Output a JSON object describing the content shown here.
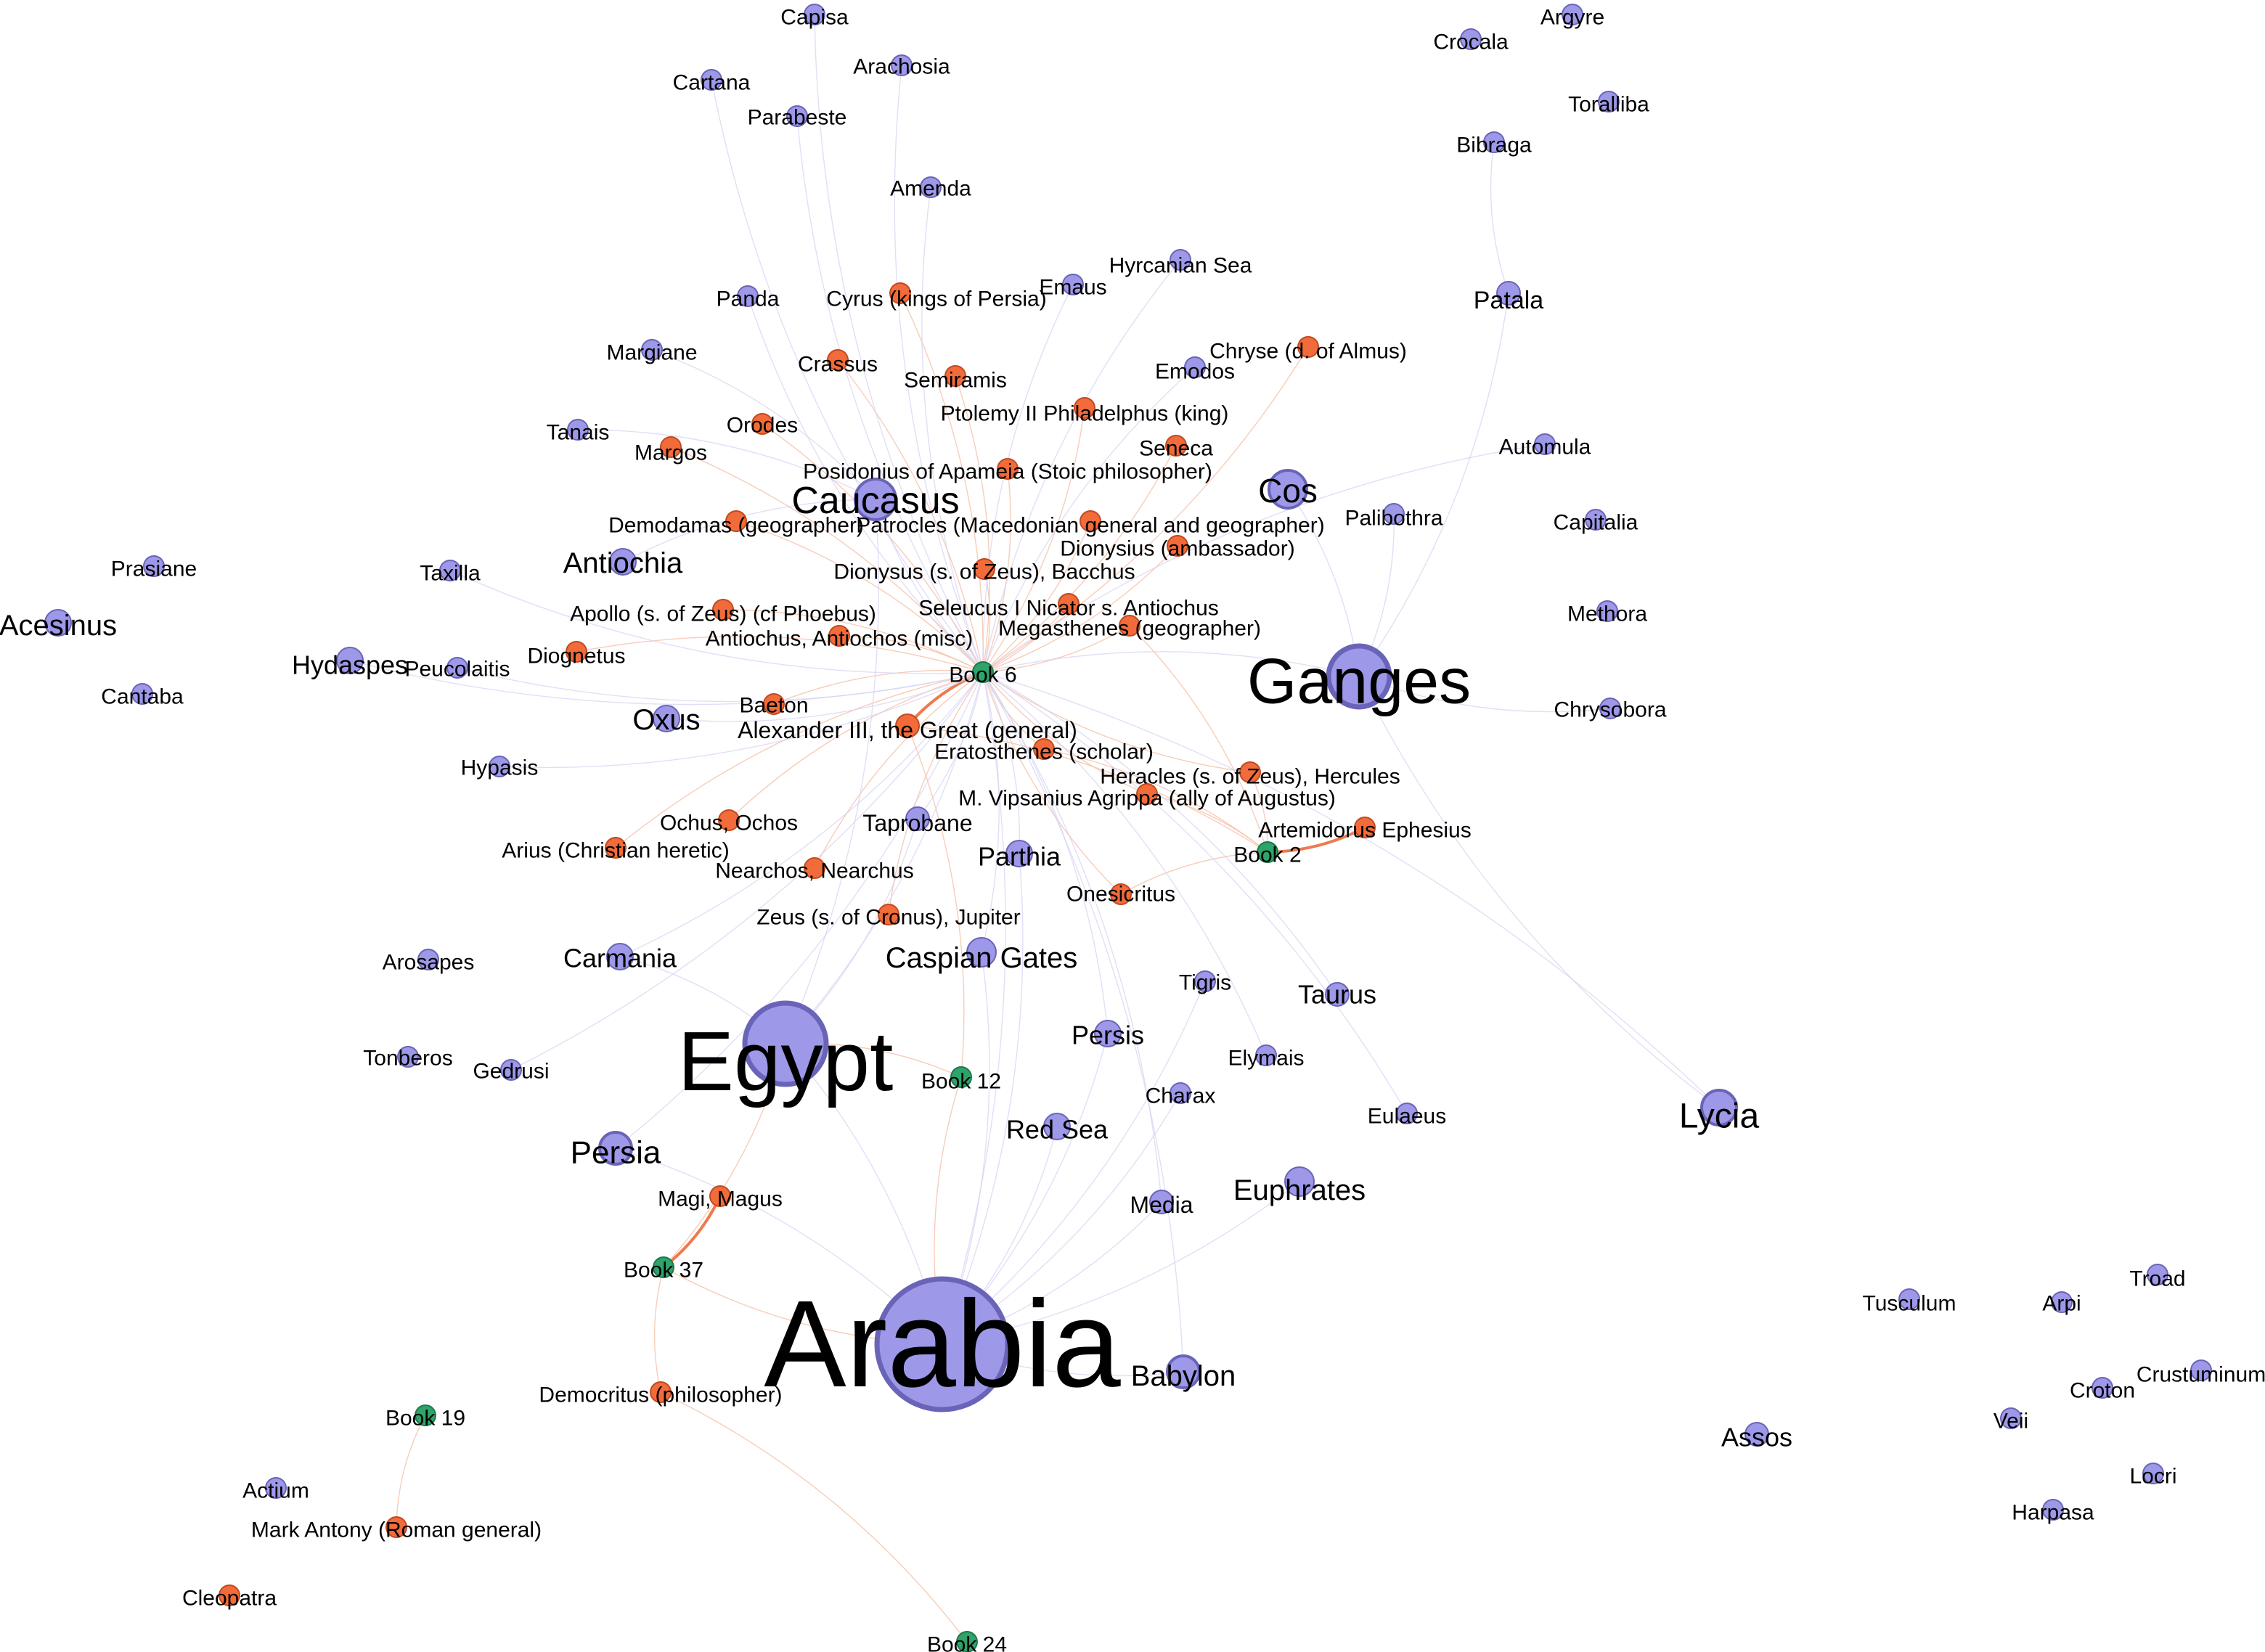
{
  "colors": {
    "place": "#9d98e8",
    "place_stroke": "#6a64b8",
    "person": "#f26b3a",
    "person_stroke": "#c24a1f",
    "book": "#2ea36a",
    "book_stroke": "#1c7a4a",
    "edge_light": "#f6c0a8",
    "edge_strong": "#ee7a4e",
    "edge_blue": "#d4d2f2",
    "background": "#ffffff"
  },
  "legend_categories": [
    "place",
    "person",
    "book"
  ],
  "nodes": [
    {
      "id": "capisa",
      "label": "Capisa",
      "type": "place"
    },
    {
      "id": "arachosia",
      "label": "Arachosia",
      "type": "place"
    },
    {
      "id": "cartana",
      "label": "Cartana",
      "type": "place"
    },
    {
      "id": "parabeste",
      "label": "Parabeste",
      "type": "place"
    },
    {
      "id": "amenda",
      "label": "Amenda",
      "type": "place"
    },
    {
      "id": "crocala",
      "label": "Crocala",
      "type": "place"
    },
    {
      "id": "argyre",
      "label": "Argyre",
      "type": "place"
    },
    {
      "id": "toralliba",
      "label": "Toralliba",
      "type": "place"
    },
    {
      "id": "bibraga",
      "label": "Bibraga",
      "type": "place"
    },
    {
      "id": "hyrcanian_sea",
      "label": "Hyrcanian Sea",
      "type": "place"
    },
    {
      "id": "emaus",
      "label": "Emaus",
      "type": "place"
    },
    {
      "id": "panda",
      "label": "Panda",
      "type": "place"
    },
    {
      "id": "cyrus",
      "label": "Cyrus (kings of Persia)",
      "type": "person"
    },
    {
      "id": "patala",
      "label": "Patala",
      "type": "place"
    },
    {
      "id": "margiane",
      "label": "Margiane",
      "type": "place"
    },
    {
      "id": "crassus",
      "label": "Crassus",
      "type": "person"
    },
    {
      "id": "semiramis",
      "label": "Semiramis",
      "type": "person"
    },
    {
      "id": "chryse",
      "label": "Chryse (d. of Almus)",
      "type": "person"
    },
    {
      "id": "emodos",
      "label": "Emodos",
      "type": "place"
    },
    {
      "id": "ptolemy2",
      "label": "Ptolemy II Philadelphus (king)",
      "type": "person"
    },
    {
      "id": "tanais",
      "label": "Tanais",
      "type": "place"
    },
    {
      "id": "orodes",
      "label": "Orodes",
      "type": "person"
    },
    {
      "id": "margos",
      "label": "Margos",
      "type": "person"
    },
    {
      "id": "seneca",
      "label": "Seneca",
      "type": "person"
    },
    {
      "id": "automula",
      "label": "Automula",
      "type": "place"
    },
    {
      "id": "posidonius",
      "label": "Posidonius of Apameia (Stoic philosopher)",
      "type": "person"
    },
    {
      "id": "cos",
      "label": "Cos",
      "type": "place"
    },
    {
      "id": "caucasus",
      "label": "Caucasus",
      "type": "place"
    },
    {
      "id": "capitalia",
      "label": "Capitalia",
      "type": "place"
    },
    {
      "id": "palibothra",
      "label": "Palibothra",
      "type": "place"
    },
    {
      "id": "demodamas",
      "label": "Demodamas (geographer)",
      "type": "person"
    },
    {
      "id": "patrocles",
      "label": "Patrocles (Macedonian general and geographer)",
      "type": "person"
    },
    {
      "id": "dionysius_amb",
      "label": "Dionysius (ambassador)",
      "type": "person"
    },
    {
      "id": "prasiane",
      "label": "Prasiane",
      "type": "place"
    },
    {
      "id": "antiochia",
      "label": "Antiochia",
      "type": "place"
    },
    {
      "id": "taxilla",
      "label": "Taxilla",
      "type": "place"
    },
    {
      "id": "dionysus",
      "label": "Dionysus (s. of Zeus), Bacchus",
      "type": "person"
    },
    {
      "id": "acesinus",
      "label": "Acesinus",
      "type": "place"
    },
    {
      "id": "apollo",
      "label": "Apollo (s. of Zeus) (cf Phoebus)",
      "type": "person"
    },
    {
      "id": "seleucus",
      "label": "Seleucus I Nicator s. Antiochus",
      "type": "person"
    },
    {
      "id": "methora",
      "label": "Methora",
      "type": "place"
    },
    {
      "id": "antiochus",
      "label": "Antiochus, Antiochos (misc)",
      "type": "person"
    },
    {
      "id": "megasthenes",
      "label": "Megasthenes (geographer)",
      "type": "person"
    },
    {
      "id": "diognetus",
      "label": "Diognetus",
      "type": "person"
    },
    {
      "id": "hydaspes",
      "label": "Hydaspes",
      "type": "place"
    },
    {
      "id": "peucolaitis",
      "label": "Peucolaitis",
      "type": "place"
    },
    {
      "id": "book6",
      "label": "Book 6",
      "type": "book"
    },
    {
      "id": "ganges",
      "label": "Ganges",
      "type": "place"
    },
    {
      "id": "cantaba",
      "label": "Cantaba",
      "type": "place"
    },
    {
      "id": "baeton",
      "label": "Baeton",
      "type": "person"
    },
    {
      "id": "chrysobora",
      "label": "Chrysobora",
      "type": "place"
    },
    {
      "id": "oxus",
      "label": "Oxus",
      "type": "place"
    },
    {
      "id": "alexander",
      "label": "Alexander III, the Great (general)",
      "type": "person"
    },
    {
      "id": "eratosthenes",
      "label": "Eratosthenes (scholar)",
      "type": "person"
    },
    {
      "id": "hypasis",
      "label": "Hypasis",
      "type": "place"
    },
    {
      "id": "heracles",
      "label": "Heracles (s. of Zeus), Hercules",
      "type": "person"
    },
    {
      "id": "agrippa",
      "label": "M. Vipsanius Agrippa (ally of Augustus)",
      "type": "person"
    },
    {
      "id": "ochus",
      "label": "Ochus, Ochos",
      "type": "person"
    },
    {
      "id": "taprobane",
      "label": "Taprobane",
      "type": "place"
    },
    {
      "id": "artemidorus",
      "label": "Artemidorus Ephesius",
      "type": "person"
    },
    {
      "id": "arius",
      "label": "Arius (Christian heretic)",
      "type": "person"
    },
    {
      "id": "book2",
      "label": "Book 2",
      "type": "book"
    },
    {
      "id": "parthia",
      "label": "Parthia",
      "type": "place"
    },
    {
      "id": "nearchos",
      "label": "Nearchos, Nearchus",
      "type": "person"
    },
    {
      "id": "onesicritus",
      "label": "Onesicritus",
      "type": "person"
    },
    {
      "id": "zeus",
      "label": "Zeus (s. of Cronus), Jupiter",
      "type": "person"
    },
    {
      "id": "arosapes",
      "label": "Arosapes",
      "type": "place"
    },
    {
      "id": "carmania",
      "label": "Carmania",
      "type": "place"
    },
    {
      "id": "caspian_gates",
      "label": "Caspian Gates",
      "type": "place"
    },
    {
      "id": "tigris",
      "label": "Tigris",
      "type": "place"
    },
    {
      "id": "taurus",
      "label": "Taurus",
      "type": "place"
    },
    {
      "id": "tonberos",
      "label": "Tonberos",
      "type": "place"
    },
    {
      "id": "persis",
      "label": "Persis",
      "type": "place"
    },
    {
      "id": "elymais",
      "label": "Elymais",
      "type": "place"
    },
    {
      "id": "gedrusi",
      "label": "Gedrusi",
      "type": "place"
    },
    {
      "id": "egypt",
      "label": "Egypt",
      "type": "place"
    },
    {
      "id": "book12",
      "label": "Book 12",
      "type": "book"
    },
    {
      "id": "charax",
      "label": "Charax",
      "type": "place"
    },
    {
      "id": "eulaeus",
      "label": "Eulaeus",
      "type": "place"
    },
    {
      "id": "lycia",
      "label": "Lycia",
      "type": "place"
    },
    {
      "id": "red_sea",
      "label": "Red Sea",
      "type": "place"
    },
    {
      "id": "persia",
      "label": "Persia",
      "type": "place"
    },
    {
      "id": "euphrates",
      "label": "Euphrates",
      "type": "place"
    },
    {
      "id": "magi",
      "label": "Magi, Magus",
      "type": "person"
    },
    {
      "id": "media",
      "label": "Media",
      "type": "place"
    },
    {
      "id": "book37",
      "label": "Book 37",
      "type": "book"
    },
    {
      "id": "troad",
      "label": "Troad",
      "type": "place"
    },
    {
      "id": "tusculum",
      "label": "Tusculum",
      "type": "place"
    },
    {
      "id": "arpi",
      "label": "Arpi",
      "type": "place"
    },
    {
      "id": "arabia",
      "label": "Arabia",
      "type": "place"
    },
    {
      "id": "babylon",
      "label": "Babylon",
      "type": "place"
    },
    {
      "id": "crustuminum",
      "label": "Crustuminum",
      "type": "place"
    },
    {
      "id": "croton",
      "label": "Croton",
      "type": "place"
    },
    {
      "id": "democritus",
      "label": "Democritus (philosopher)",
      "type": "person"
    },
    {
      "id": "veii",
      "label": "Veii",
      "type": "place"
    },
    {
      "id": "book19",
      "label": "Book 19",
      "type": "book"
    },
    {
      "id": "assos",
      "label": "Assos",
      "type": "place"
    },
    {
      "id": "locri",
      "label": "Locri",
      "type": "place"
    },
    {
      "id": "actium",
      "label": "Actium",
      "type": "place"
    },
    {
      "id": "harpasa",
      "label": "Harpasa",
      "type": "place"
    },
    {
      "id": "mark_antony",
      "label": "Mark Antony (Roman general)",
      "type": "person"
    },
    {
      "id": "cleopatra",
      "label": "Cleopatra",
      "type": "person"
    },
    {
      "id": "book24",
      "label": "Book 24",
      "type": "book"
    }
  ]
}
